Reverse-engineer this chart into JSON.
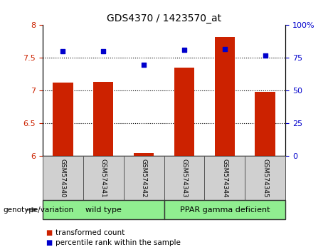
{
  "title": "GDS4370 / 1423570_at",
  "samples": [
    "GSM574340",
    "GSM574341",
    "GSM574342",
    "GSM574343",
    "GSM574344",
    "GSM574345"
  ],
  "transformed_counts": [
    7.12,
    7.13,
    6.05,
    7.35,
    7.82,
    6.98
  ],
  "percentile_ranks": [
    80,
    80,
    70,
    81,
    82,
    77
  ],
  "ylim_left": [
    6.0,
    8.0
  ],
  "ylim_right": [
    0,
    100
  ],
  "yticks_left": [
    6.0,
    6.5,
    7.0,
    7.5,
    8.0
  ],
  "yticks_right": [
    0,
    25,
    50,
    75,
    100
  ],
  "ytick_labels_left": [
    "6",
    "6.5",
    "7",
    "7.5",
    "8"
  ],
  "ytick_labels_right": [
    "0",
    "25",
    "50",
    "75",
    "100%"
  ],
  "hlines": [
    6.5,
    7.0,
    7.5
  ],
  "bar_color": "#cc2200",
  "scatter_color": "#0000cc",
  "bar_width": 0.5,
  "group_sizes": [
    3,
    3
  ],
  "group_labels": [
    "wild type",
    "PPAR gamma deficient"
  ],
  "group_color": "#90ee90",
  "genotype_label": "genotype/variation",
  "legend_items": [
    {
      "label": "transformed count",
      "color": "#cc2200"
    },
    {
      "label": "percentile rank within the sample",
      "color": "#0000cc"
    }
  ],
  "tick_label_color_left": "#cc2200",
  "tick_label_color_right": "#0000cc",
  "background_plot": "#ffffff",
  "background_sample_box": "#d0d0d0"
}
